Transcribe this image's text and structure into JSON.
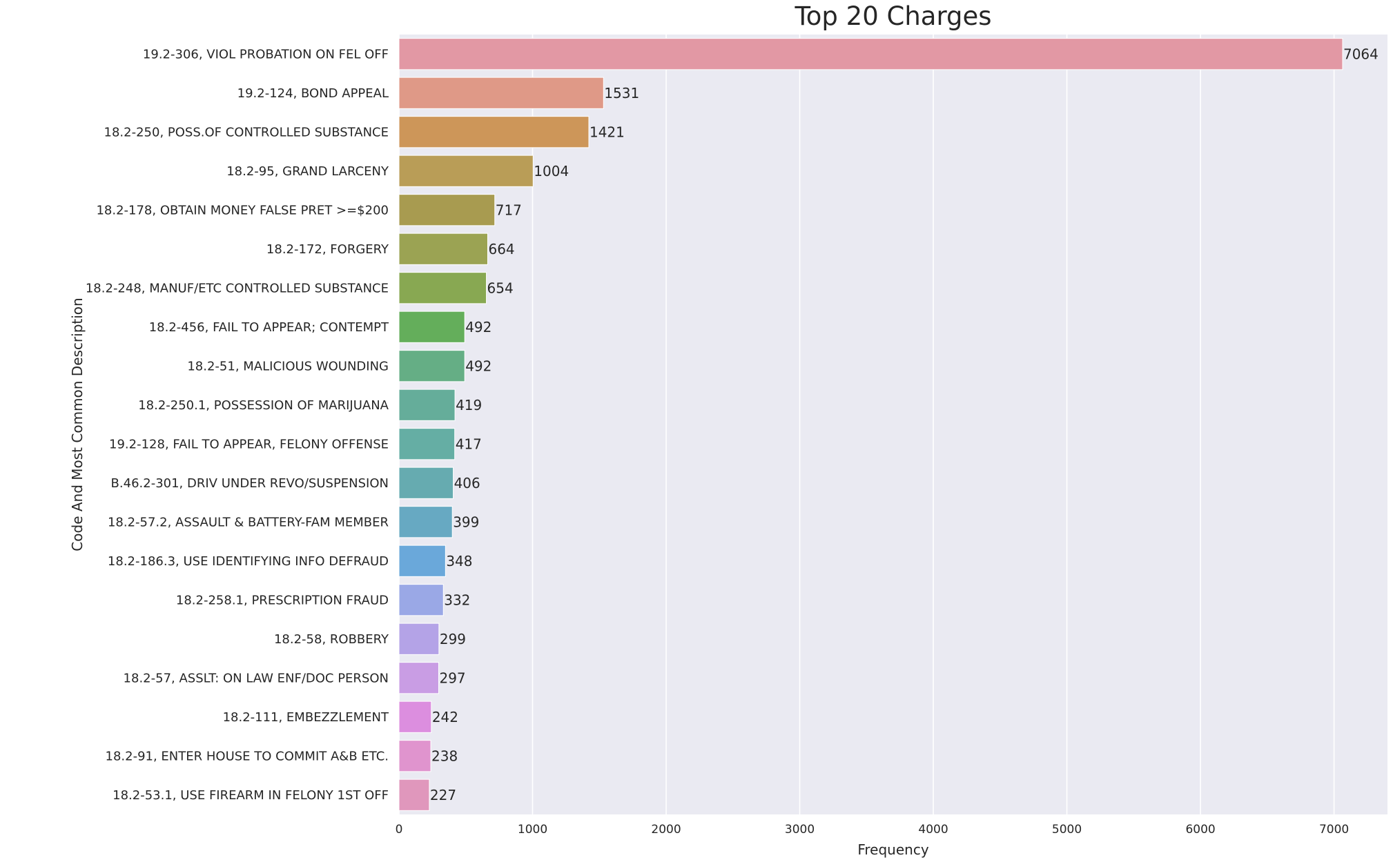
{
  "chart_data": {
    "type": "bar",
    "orientation": "horizontal",
    "title": "Top 20 Charges",
    "xlabel": "Frequency",
    "ylabel": "Code And Most Common Description",
    "xlim": [
      0,
      7400
    ],
    "xticks": [
      0,
      1000,
      2000,
      3000,
      4000,
      5000,
      6000,
      7000
    ],
    "grid": true,
    "data_labels": true,
    "categories": [
      "19.2-306, VIOL PROBATION ON FEL OFF",
      "19.2-124, BOND APPEAL",
      "18.2-250, POSS.OF CONTROLLED SUBSTANCE",
      "18.2-95, GRAND LARCENY",
      "18.2-178, OBTAIN MONEY FALSE PRET >=$200",
      "18.2-172, FORGERY",
      "18.2-248, MANUF/ETC CONTROLLED SUBSTANCE",
      "18.2-456, FAIL TO APPEAR; CONTEMPT",
      "18.2-51, MALICIOUS WOUNDING",
      "18.2-250.1, POSSESSION OF MARIJUANA",
      "19.2-128, FAIL TO APPEAR, FELONY OFFENSE",
      "B.46.2-301, DRIV UNDER REVO/SUSPENSION",
      "18.2-57.2, ASSAULT & BATTERY-FAM MEMBER",
      "18.2-186.3, USE IDENTIFYING INFO DEFRAUD",
      "18.2-258.1, PRESCRIPTION FRAUD",
      "18.2-58, ROBBERY",
      "18.2-57, ASSLT: ON LAW ENF/DOC PERSON",
      "18.2-111, EMBEZZLEMENT",
      "18.2-91, ENTER HOUSE TO COMMIT A&B ETC.",
      "18.2-53.1, USE FIREARM IN FELONY 1ST OFF"
    ],
    "values": [
      7064,
      1531,
      1421,
      1004,
      717,
      664,
      654,
      492,
      492,
      419,
      417,
      406,
      399,
      348,
      332,
      299,
      297,
      242,
      238,
      227
    ],
    "colors": [
      "#e298a4",
      "#df9987",
      "#cd9659",
      "#b99d57",
      "#a89b50",
      "#9ba353",
      "#88a852",
      "#64ae5b",
      "#65ae85",
      "#65ad9a",
      "#65aea4",
      "#66abb0",
      "#67a9c2",
      "#6aa8da",
      "#9aa8e6",
      "#b4a3e7",
      "#c99de4",
      "#dc8edf",
      "#e094ce",
      "#e097bc"
    ],
    "style": {
      "plot_background": "#eaeaf2",
      "grid_color": "#ffffff",
      "text_color": "#262626"
    }
  }
}
